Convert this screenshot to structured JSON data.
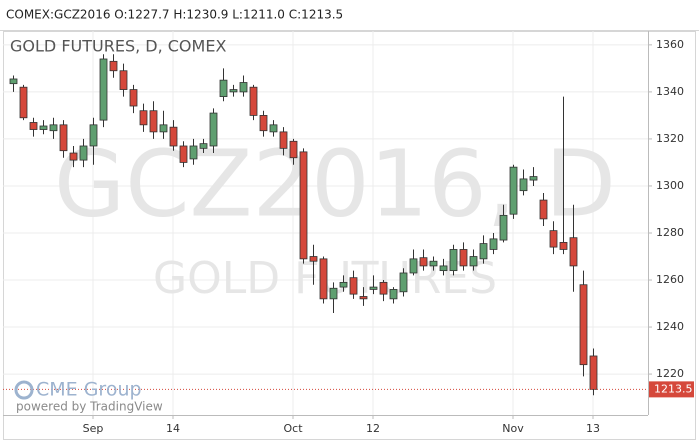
{
  "chart_data": {
    "type": "candlestick",
    "header": "COMEX:GCZ2016 O:1227.7 H:1230.9 L:1211.0 C:1213.5",
    "title": "GOLD FUTURES, D, COMEX",
    "watermark": "GCZ2016, D",
    "watermark_subtitle": "GOLD FUTURES",
    "logo": "CME Group",
    "credit": "powered by TradingView",
    "categories": [
      null,
      null,
      null,
      null,
      null,
      null,
      null,
      null,
      "Sep",
      null,
      null,
      null,
      null,
      null,
      null,
      null,
      "14",
      null,
      null,
      null,
      null,
      null,
      null,
      null,
      null,
      null,
      null,
      null,
      "Oct",
      null,
      null,
      null,
      null,
      null,
      null,
      null,
      "12",
      null,
      null,
      null,
      null,
      null,
      null,
      null,
      null,
      null,
      null,
      null,
      null,
      null,
      "Nov",
      null,
      null,
      null,
      null,
      null,
      null,
      null,
      "13"
    ],
    "open": [
      1343.5,
      1342,
      1327,
      1324,
      1323.5,
      1326,
      1314,
      1311,
      1317,
      1328,
      1353,
      1349,
      1341,
      1332,
      1332,
      1323,
      1325,
      1317,
      1311.5,
      1316,
      1317,
      1338,
      1340,
      1340,
      1342,
      1330,
      1323,
      1323,
      1319,
      1314.5,
      1270,
      1269,
      1252,
      1257,
      1261,
      1253,
      1256,
      1259,
      1252,
      1255,
      1263,
      1269.5,
      1266,
      1264,
      1264,
      1273,
      1266,
      1269,
      1273,
      1277,
      1288,
      1298,
      1302.5,
      1294,
      1281,
      1276,
      1278,
      1258,
      1227.7
    ],
    "high": [
      1347,
      1343,
      1329,
      1328,
      1329,
      1328,
      1317,
      1320,
      1329,
      1356,
      1356,
      1352,
      1343,
      1335,
      1336,
      1332,
      1328,
      1319,
      1320,
      1320,
      1333,
      1350,
      1343,
      1347,
      1343,
      1332,
      1328,
      1325,
      1320,
      1316,
      1275,
      1270,
      1259,
      1262,
      1264,
      1257,
      1262,
      1260,
      1257,
      1265,
      1273,
      1273,
      1270,
      1269,
      1275,
      1276,
      1273,
      1279,
      1280,
      1292,
      1309,
      1307,
      1308,
      1297,
      1285,
      1338,
      1292,
      1264,
      1230.9
    ],
    "low": [
      1340,
      1328,
      1321,
      1322,
      1320,
      1312,
      1308,
      1308,
      1309,
      1325,
      1346,
      1338,
      1331,
      1323,
      1320,
      1320,
      1315,
      1308,
      1309,
      1314,
      1314,
      1336,
      1338,
      1338,
      1328,
      1321,
      1321,
      1313,
      1309,
      1267,
      1258,
      1250,
      1246,
      1255,
      1252,
      1249,
      1254,
      1251,
      1250,
      1253,
      1262,
      1264,
      1264,
      1262,
      1262,
      1264,
      1264,
      1267,
      1271,
      1276,
      1286,
      1296,
      1300,
      1283,
      1271,
      1271,
      1255,
      1219,
      1211.0
    ],
    "close": [
      1345.5,
      1329,
      1324,
      1325.5,
      1326,
      1315,
      1311,
      1317,
      1326,
      1354,
      1349,
      1341,
      1334,
      1326,
      1323,
      1326,
      1317,
      1310,
      1317,
      1318,
      1331,
      1345,
      1341,
      1344,
      1330,
      1323.5,
      1326,
      1316,
      1312,
      1269,
      1268,
      1252,
      1256.5,
      1259,
      1254,
      1252,
      1257,
      1254,
      1256,
      1263,
      1269,
      1266,
      1268,
      1266,
      1273,
      1266,
      1270,
      1275.5,
      1277.5,
      1287.5,
      1308,
      1303,
      1304,
      1286,
      1274,
      1273,
      1266,
      1224,
      1213.5
    ],
    "up_color": "#5f9f70",
    "down_color": "#d5483b",
    "ylim": [
      1202.6,
      1365.9
    ],
    "yticks": [
      1220,
      1240,
      1260,
      1280,
      1300,
      1320,
      1340,
      1360
    ],
    "grid": true
  }
}
